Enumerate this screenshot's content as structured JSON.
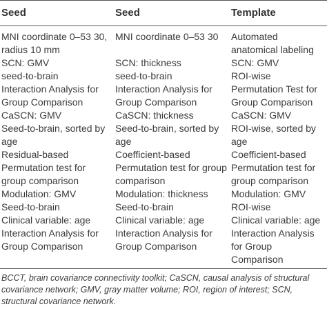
{
  "table": {
    "headers": [
      "Seed",
      "Seed",
      "Template"
    ],
    "rows": [
      [
        "MNI coordinate 0–53 30, radius 10 mm",
        "MNI coordinate 0–53 30",
        "Automated anatomical labeling"
      ],
      [
        "SCN: GMV",
        "SCN: thickness",
        "SCN: GMV"
      ],
      [
        "seed-to-brain",
        "seed-to-brain",
        "ROI-wise"
      ],
      [
        "Interaction Analysis for Group Comparison",
        "Interaction Analysis for Group Comparison",
        "Permutation Test for Group Comparison"
      ],
      [
        "CaSCN: GMV",
        "CaSCN: thickness",
        "CaSCN: GMV"
      ],
      [
        "Seed-to-brain, sorted by age",
        "Seed-to-brain, sorted by age",
        "ROI-wise, sorted by age"
      ],
      [
        "Residual-based",
        "Coefficient-based",
        "Coefficient-based"
      ],
      [
        "Permutation test for group comparison",
        "Permutation test for group comparison",
        "Permutation test for group comparison"
      ],
      [
        "Modulation: GMV",
        "Modulation: thickness",
        "Modulation: GMV"
      ],
      [
        "Seed-to-brain",
        "Seed-to-brain",
        "ROI-wise"
      ],
      [
        "Clinical variable: age",
        "Clinical variable: age",
        "Clinical variable: age"
      ],
      [
        "Interaction Analysis for Group Comparison",
        "Interaction Analysis for Group Comparison",
        "Interaction Analysis for Group Comparison"
      ]
    ]
  },
  "footnote": "BCCT, brain covariance connectivity toolkit; CaSCN, causal analysis of structural covariance network; GMV, gray matter volume; ROI, region of interest; SCN, structural covariance network."
}
